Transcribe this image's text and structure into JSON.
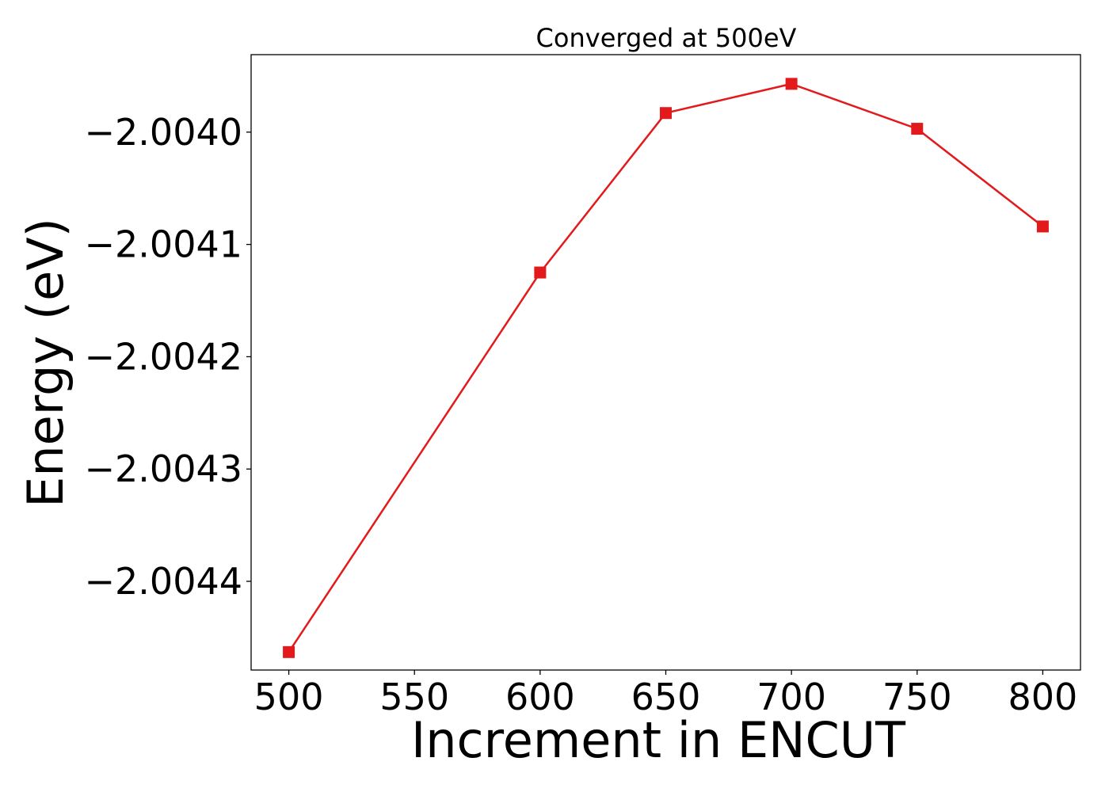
{
  "chart_data": {
    "type": "line",
    "title": "Converged at 500eV",
    "xlabel": "Increment in ENCUT",
    "ylabel": "Energy (eV)",
    "x": [
      500,
      600,
      650,
      700,
      750,
      800
    ],
    "series": [
      {
        "values": [
          -2.004463,
          -2.004125,
          -2.003983,
          -2.003957,
          -2.003997,
          -2.004084
        ],
        "color": "#e31a1c",
        "marker": "square"
      }
    ],
    "xticks": [
      500,
      550,
      600,
      650,
      700,
      750,
      800
    ],
    "xtick_labels": [
      "500",
      "550",
      "600",
      "650",
      "700",
      "750",
      "800"
    ],
    "yticks": [
      -2.0044,
      -2.0043,
      -2.0042,
      -2.0041,
      -2.004
    ],
    "ytick_labels": [
      "−2.0044",
      "−2.0043",
      "−2.0042",
      "−2.0041",
      "−2.0040"
    ],
    "xlim": [
      485,
      815
    ],
    "ylim": [
      -2.004479,
      -2.003931
    ],
    "grid": false,
    "legend": "none"
  }
}
